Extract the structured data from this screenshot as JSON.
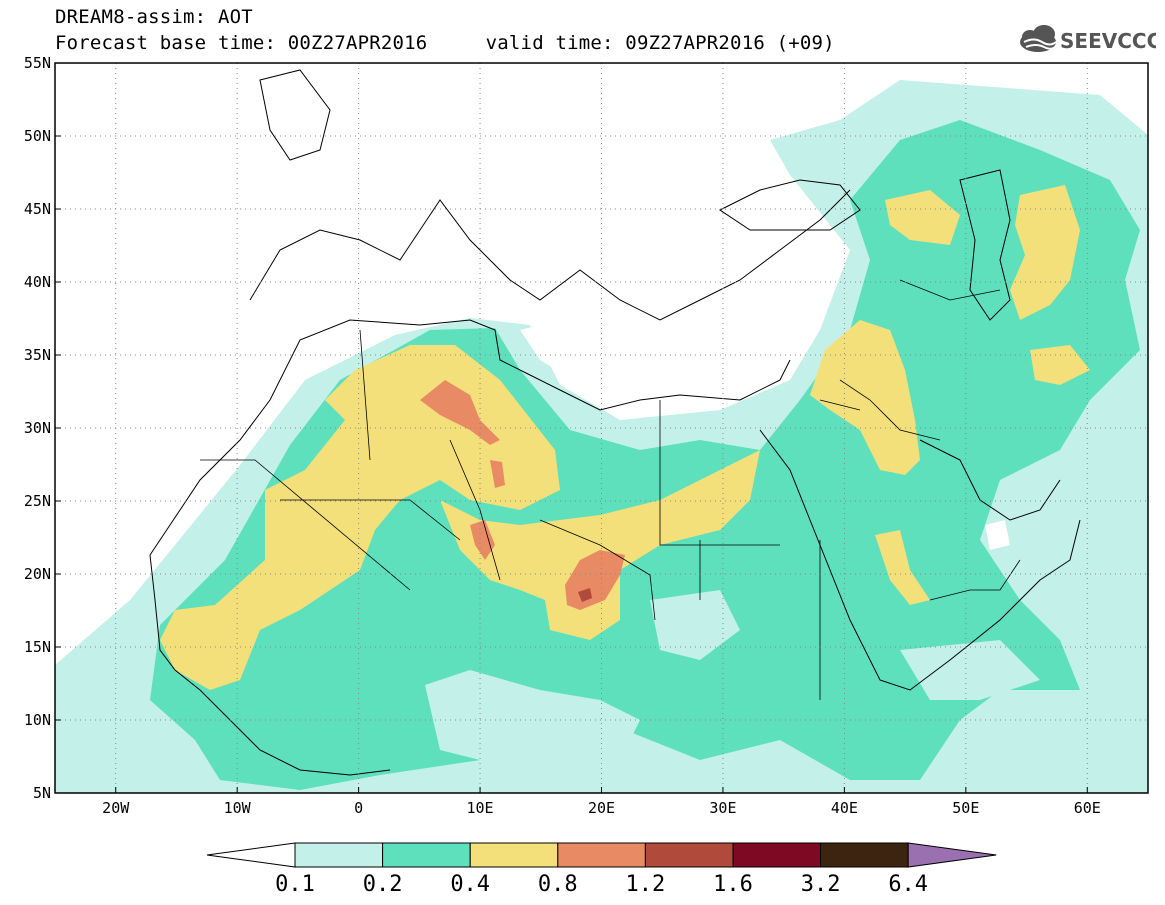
{
  "header": {
    "line1": "DREAM8-assim: AOT",
    "line2": "Forecast base time: 00Z27APR2016     valid time: 09Z27APR2016 (+09)"
  },
  "logo": {
    "text": "SEEVCCC",
    "icon": "cloud-icon"
  },
  "map": {
    "lon_range": [
      -25,
      65
    ],
    "lat_range": [
      5,
      55
    ],
    "lat_labels": [
      "55N",
      "50N",
      "45N",
      "40N",
      "35N",
      "30N",
      "25N",
      "20N",
      "15N",
      "10N",
      "5N"
    ],
    "lon_labels": [
      "20W",
      "10W",
      "0",
      "10E",
      "20E",
      "30E",
      "40E",
      "50E",
      "60E"
    ],
    "grid": "dotted"
  },
  "legend": {
    "thresholds": [
      "0.1",
      "0.2",
      "0.4",
      "0.8",
      "1.2",
      "1.6",
      "3.2",
      "6.4"
    ],
    "colors": [
      "#ffffff",
      "#c3f0e8",
      "#5ee0bc",
      "#f4e07a",
      "#e88a64",
      "#b04a3a",
      "#7d0a22",
      "#3c2410",
      "#9a70b0"
    ]
  }
}
